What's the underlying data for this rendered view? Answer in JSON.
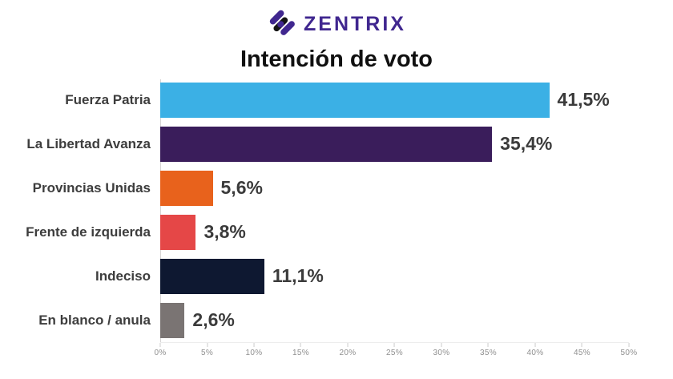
{
  "logo": {
    "brand": "ZENTRIX",
    "icon": "zentrix-diagonal-stripes-icon",
    "brand_color": "#40278F",
    "icon_colors": [
      "#40278F",
      "#141414"
    ]
  },
  "chart_data": {
    "type": "bar",
    "orientation": "horizontal",
    "title": "Intención de voto",
    "categories": [
      "Fuerza Patria",
      "La Libertad Avanza",
      "Provincias Unidas",
      "Frente de izquierda",
      "Indeciso",
      "En blanco / anula"
    ],
    "values": [
      41.5,
      35.4,
      5.6,
      3.8,
      11.1,
      2.6
    ],
    "value_labels": [
      "41,5%",
      "35,4%",
      "5,6%",
      "3,8%",
      "11,1%",
      "2,6%"
    ],
    "bar_colors": [
      "#3BB0E5",
      "#3A1D5B",
      "#E8621C",
      "#E54747",
      "#0E1831",
      "#7A7473"
    ],
    "xlabel": "",
    "ylabel": "",
    "xlim": [
      0,
      50
    ],
    "xticks": [
      "0%",
      "5%",
      "10%",
      "15%",
      "20%",
      "25%",
      "30%",
      "35%",
      "40%",
      "45%",
      "50%"
    ],
    "grid": false,
    "legend": false,
    "label_color": "#3d3d3d",
    "value_color": "#3b3b3b",
    "tick_color": "#8f8f8f"
  }
}
